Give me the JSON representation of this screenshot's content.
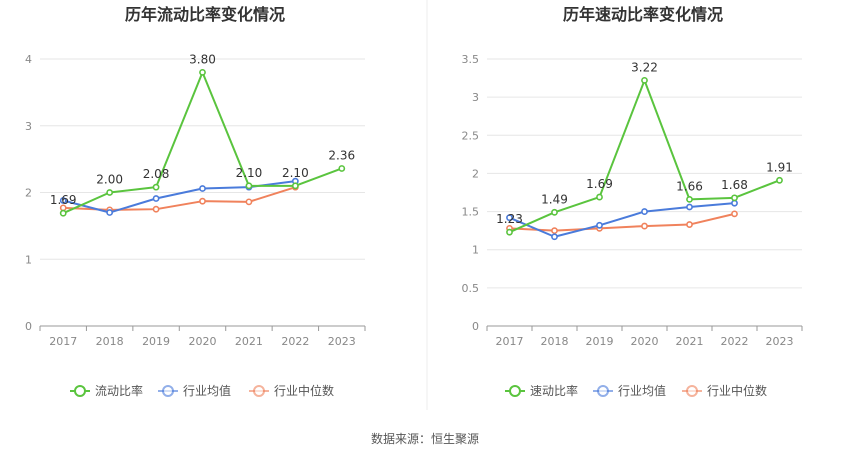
{
  "colors": {
    "main_series": "#5ac43e",
    "industry_avg": "#4a7bdb",
    "industry_median": "#f0825c",
    "axis": "#999999",
    "grid": "#e6e6e6",
    "title": "#333333",
    "label": "#333333",
    "tick": "#888888"
  },
  "chart_data": [
    {
      "type": "line",
      "title": "历年流动比率变化情况",
      "categories": [
        "2017",
        "2018",
        "2019",
        "2020",
        "2021",
        "2022",
        "2023"
      ],
      "yticks": [
        "0",
        "1",
        "2",
        "3",
        "4"
      ],
      "ylim": [
        0,
        4
      ],
      "grid": true,
      "legend_position": "bottom",
      "series": [
        {
          "name": "流动比率",
          "values": [
            1.69,
            2.0,
            2.08,
            3.8,
            2.1,
            2.1,
            2.36
          ],
          "labels": [
            "1.69",
            "2.00",
            "2.08",
            "3.80",
            "2.10",
            "2.10",
            "2.36"
          ]
        },
        {
          "name": "行业均值",
          "values": [
            1.88,
            1.7,
            1.91,
            2.06,
            2.08,
            2.17,
            null
          ]
        },
        {
          "name": "行业中位数",
          "values": [
            1.77,
            1.74,
            1.75,
            1.87,
            1.86,
            2.08,
            null
          ]
        }
      ]
    },
    {
      "type": "line",
      "title": "历年速动比率变化情况",
      "categories": [
        "2017",
        "2018",
        "2019",
        "2020",
        "2021",
        "2022",
        "2023"
      ],
      "yticks": [
        "0",
        "0.5",
        "1",
        "1.5",
        "2",
        "2.5",
        "3",
        "3.5"
      ],
      "ylim": [
        0,
        3.5
      ],
      "grid": true,
      "legend_position": "bottom",
      "series": [
        {
          "name": "速动比率",
          "values": [
            1.23,
            1.49,
            1.69,
            3.22,
            1.66,
            1.68,
            1.91
          ],
          "labels": [
            "1.23",
            "1.49",
            "1.69",
            "3.22",
            "1.66",
            "1.68",
            "1.91"
          ]
        },
        {
          "name": "行业均值",
          "values": [
            1.42,
            1.17,
            1.32,
            1.5,
            1.56,
            1.61,
            null
          ]
        },
        {
          "name": "行业中位数",
          "values": [
            1.28,
            1.25,
            1.28,
            1.31,
            1.33,
            1.47,
            null
          ]
        }
      ]
    }
  ],
  "footer": {
    "source": "数据来源：恒生聚源"
  }
}
